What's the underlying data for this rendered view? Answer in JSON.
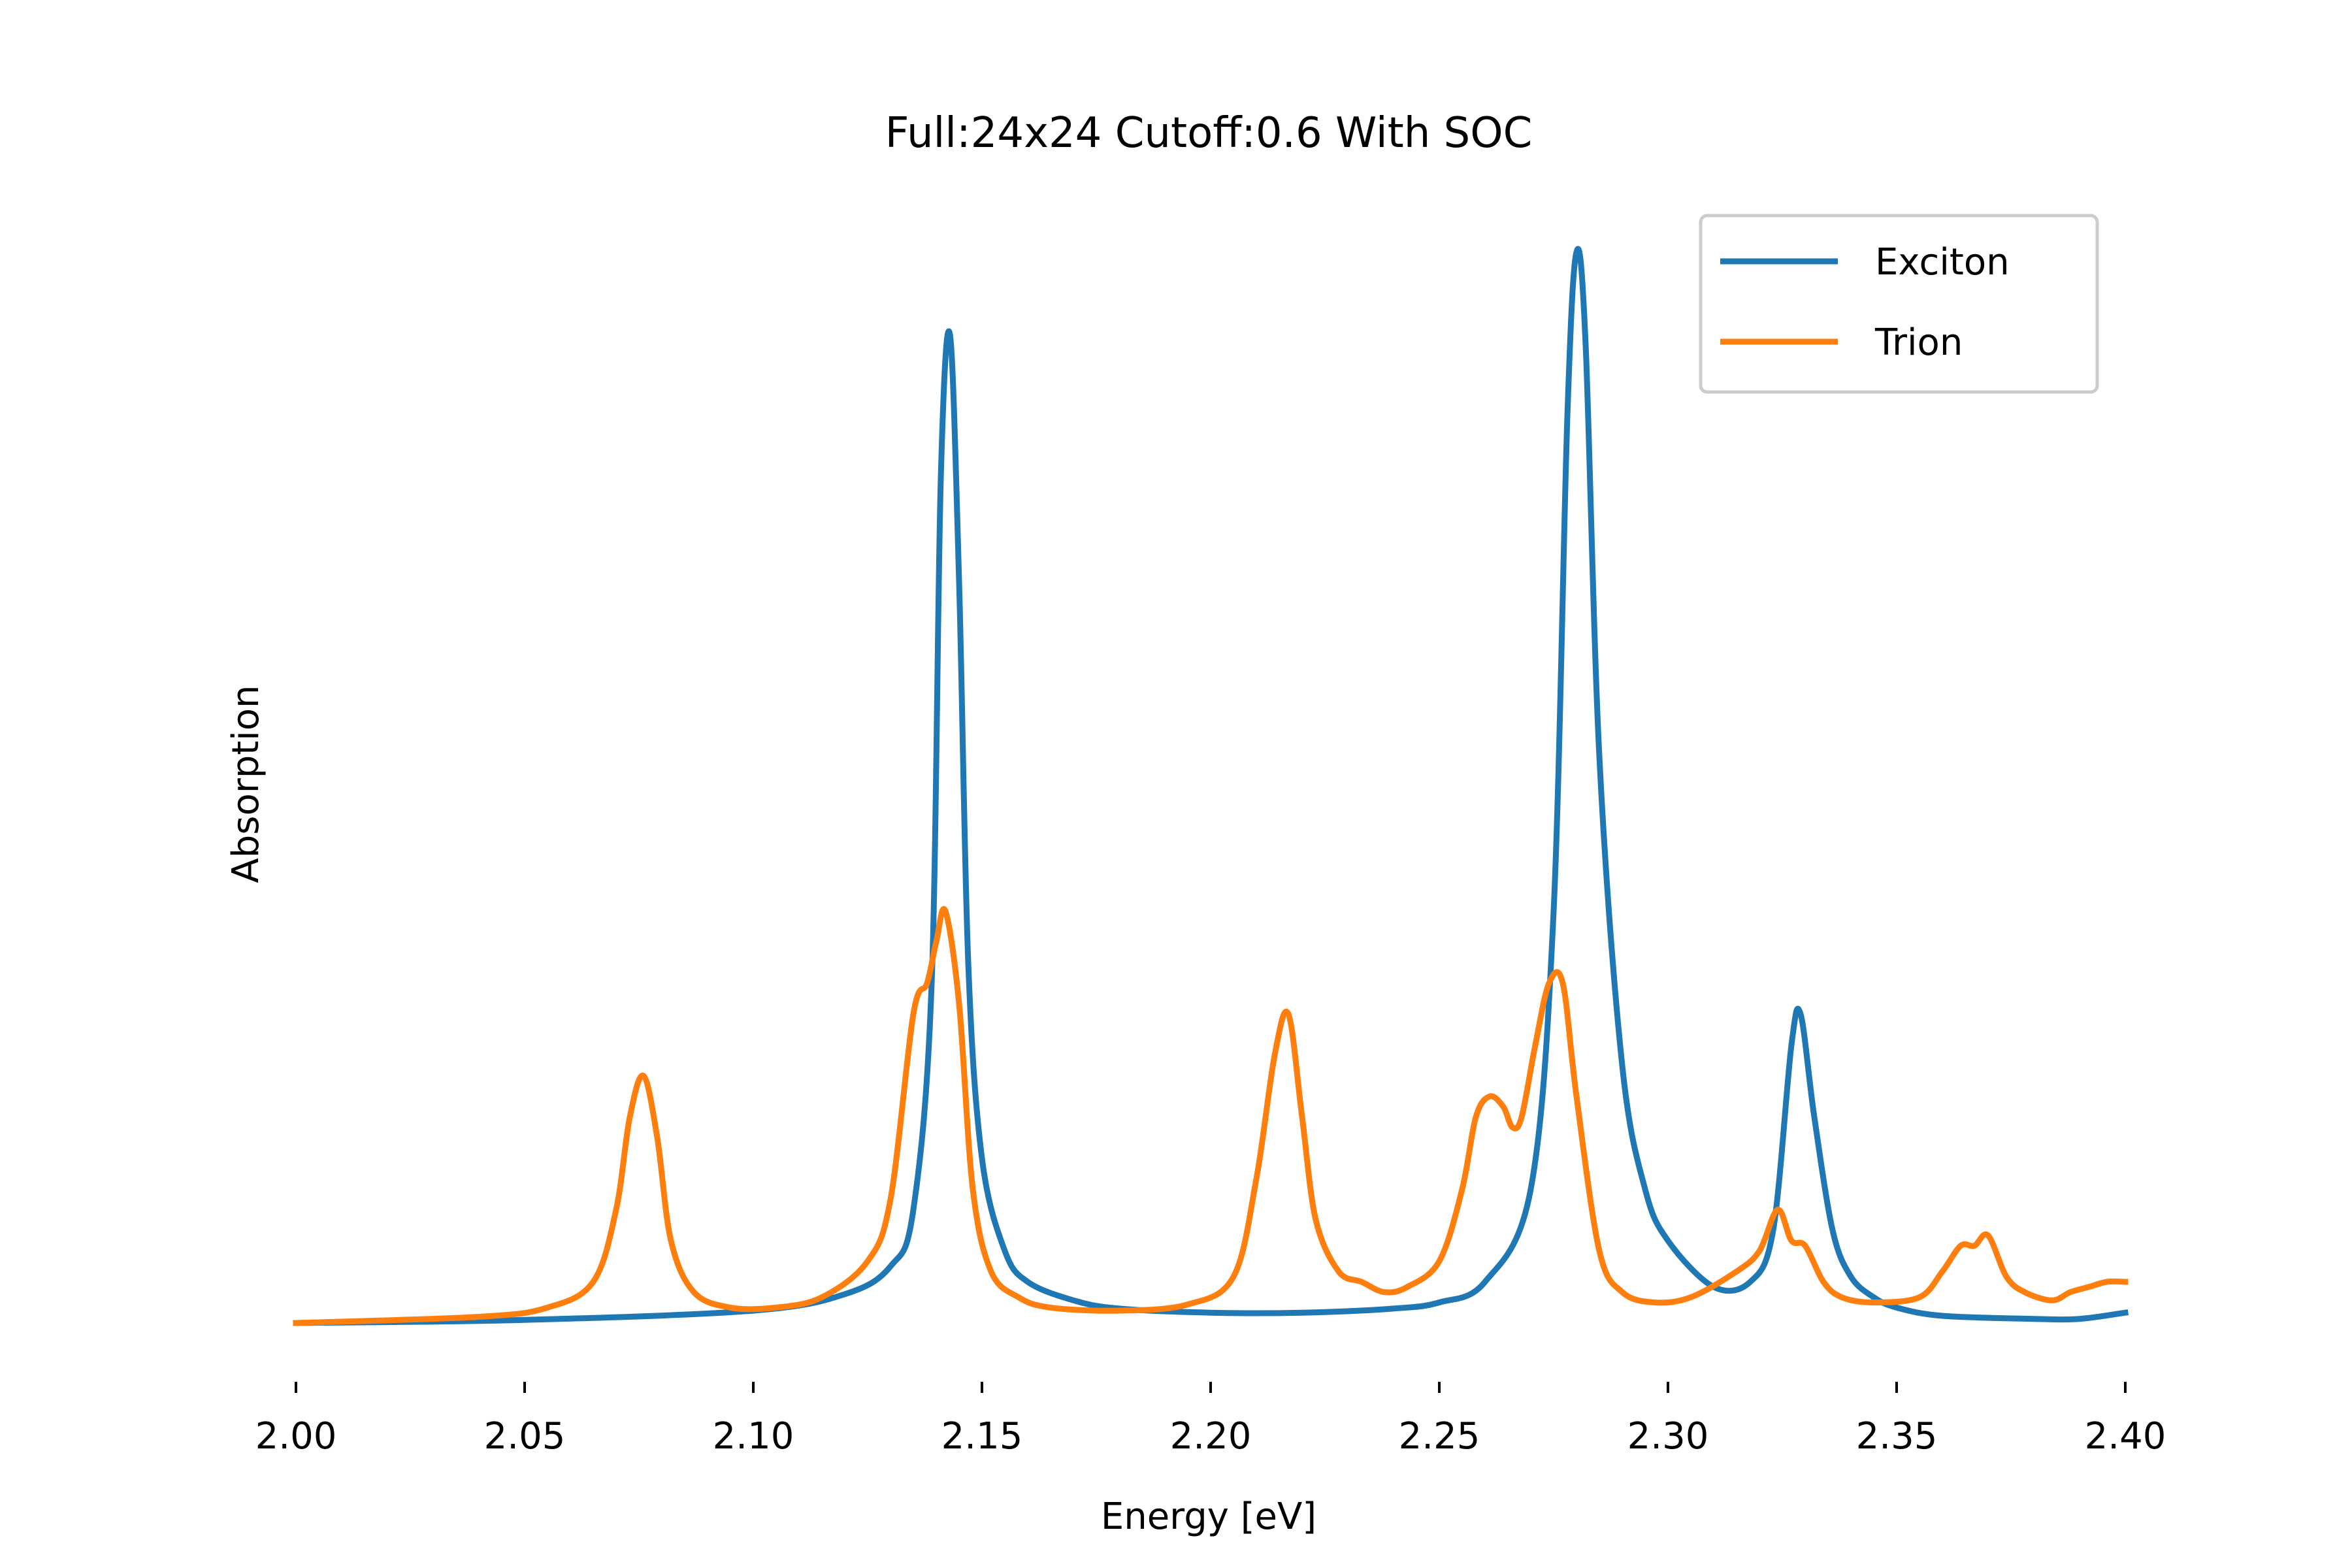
{
  "chart_data": {
    "type": "line",
    "title": "Full:24x24 Cutoff:0.6 With SOC",
    "xlabel": "Energy [eV]",
    "ylabel": "Absorption",
    "xlim": [
      2.0,
      2.4
    ],
    "ylim": [
      0,
      1.05
    ],
    "y_ticks_shown": false,
    "grid": false,
    "legend_position": "top-right",
    "x_ticks": [
      "2.00",
      "2.05",
      "2.10",
      "2.15",
      "2.20",
      "2.25",
      "2.30",
      "2.35",
      "2.40"
    ],
    "series": [
      {
        "name": "Exciton",
        "color": "#1f77b4",
        "x": [
          2.0,
          2.05,
          2.1,
          2.12,
          2.13,
          2.135,
          2.139,
          2.141,
          2.143,
          2.145,
          2.147,
          2.15,
          2.155,
          2.16,
          2.17,
          2.18,
          2.2,
          2.22,
          2.24,
          2.25,
          2.26,
          2.27,
          2.275,
          2.278,
          2.28,
          2.282,
          2.285,
          2.29,
          2.295,
          2.3,
          2.31,
          2.318,
          2.323,
          2.327,
          2.329,
          2.332,
          2.336,
          2.34,
          2.345,
          2.35,
          2.36,
          2.38,
          2.39,
          2.4
        ],
        "y": [
          0.0,
          0.003,
          0.012,
          0.028,
          0.055,
          0.11,
          0.33,
          0.82,
          0.96,
          0.72,
          0.35,
          0.16,
          0.07,
          0.04,
          0.022,
          0.014,
          0.01,
          0.01,
          0.014,
          0.02,
          0.04,
          0.13,
          0.4,
          0.88,
          1.04,
          0.95,
          0.55,
          0.25,
          0.13,
          0.08,
          0.035,
          0.04,
          0.09,
          0.27,
          0.3,
          0.2,
          0.09,
          0.045,
          0.025,
          0.015,
          0.007,
          0.004,
          0.004,
          0.01
        ]
      },
      {
        "name": "Trion",
        "color": "#ff7f0e",
        "x": [
          2.0,
          2.04,
          2.055,
          2.065,
          2.07,
          2.073,
          2.076,
          2.079,
          2.082,
          2.087,
          2.095,
          2.105,
          2.115,
          2.125,
          2.13,
          2.135,
          2.138,
          2.14,
          2.142,
          2.145,
          2.148,
          2.152,
          2.158,
          2.165,
          2.18,
          2.195,
          2.205,
          2.21,
          2.214,
          2.217,
          2.22,
          2.223,
          2.228,
          2.233,
          2.238,
          2.243,
          2.25,
          2.255,
          2.258,
          2.261,
          2.264,
          2.266,
          2.268,
          2.271,
          2.274,
          2.277,
          2.28,
          2.285,
          2.29,
          2.297,
          2.305,
          2.315,
          2.32,
          2.324,
          2.327,
          2.33,
          2.334,
          2.338,
          2.345,
          2.355,
          2.36,
          2.364,
          2.367,
          2.37,
          2.374,
          2.378,
          2.384,
          2.388,
          2.392,
          2.396,
          2.4
        ],
        "y": [
          0.0,
          0.006,
          0.015,
          0.04,
          0.11,
          0.2,
          0.24,
          0.18,
          0.08,
          0.03,
          0.015,
          0.015,
          0.025,
          0.06,
          0.12,
          0.3,
          0.33,
          0.37,
          0.4,
          0.31,
          0.13,
          0.05,
          0.025,
          0.015,
          0.012,
          0.018,
          0.045,
          0.14,
          0.26,
          0.3,
          0.2,
          0.1,
          0.05,
          0.04,
          0.03,
          0.035,
          0.06,
          0.13,
          0.2,
          0.22,
          0.21,
          0.19,
          0.2,
          0.27,
          0.33,
          0.33,
          0.22,
          0.07,
          0.03,
          0.02,
          0.025,
          0.05,
          0.07,
          0.11,
          0.08,
          0.075,
          0.04,
          0.025,
          0.02,
          0.025,
          0.05,
          0.075,
          0.075,
          0.085,
          0.045,
          0.03,
          0.022,
          0.03,
          0.035,
          0.04,
          0.04
        ]
      }
    ]
  }
}
